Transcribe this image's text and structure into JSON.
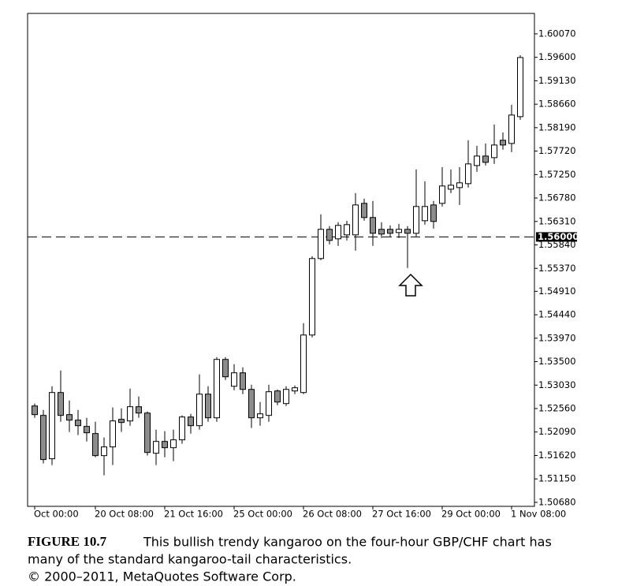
{
  "chart_data": {
    "type": "candlestick",
    "categories": [
      "Oct 00:00",
      null,
      null,
      null,
      null,
      null,
      null,
      "20 Oct 08:00",
      null,
      null,
      null,
      null,
      null,
      null,
      null,
      "21 Oct 16:00",
      null,
      null,
      null,
      null,
      null,
      null,
      null,
      "25 Oct 00:00",
      null,
      null,
      null,
      null,
      null,
      null,
      null,
      "26 Oct 08:00",
      null,
      null,
      null,
      null,
      null,
      null,
      null,
      "27 Oct 16:00",
      null,
      null,
      null,
      null,
      null,
      null,
      null,
      "29 Oct 00:00",
      null,
      null,
      null,
      null,
      null,
      null,
      null,
      "1 Nov 08:00",
      null
    ],
    "open": [
      1.52612,
      1.52423,
      1.51554,
      1.52881,
      1.52439,
      1.52328,
      1.52202,
      1.52059,
      1.51617,
      1.51791,
      1.52344,
      1.52312,
      1.52597,
      1.5247,
      1.51664,
      1.51901,
      1.51775,
      1.51933,
      1.52391,
      1.52217,
      1.52849,
      1.52375,
      1.53545,
      1.53007,
      1.53276,
      1.52944,
      1.52375,
      1.52423,
      1.52913,
      1.5266,
      1.52913,
      1.52881,
      1.54034,
      1.55567,
      1.56152,
      1.55962,
      1.56041,
      1.56041,
      1.56673,
      1.56389,
      1.56152,
      1.56152,
      1.56088,
      1.56152,
      1.56073,
      1.56325,
      1.56641,
      1.56673,
      1.56957,
      1.56989,
      1.57068,
      1.57431,
      1.57621,
      1.57589,
      1.57937,
      1.57874,
      1.58411
    ],
    "high": [
      1.5266,
      1.52533,
      1.53007,
      1.53323,
      1.52723,
      1.52533,
      1.52375,
      1.52296,
      1.5198,
      1.52581,
      1.52565,
      1.5296,
      1.52802,
      1.52502,
      1.52138,
      1.52107,
      1.52138,
      1.52423,
      1.52454,
      1.53244,
      1.53007,
      1.53592,
      1.53592,
      1.5345,
      1.53387,
      1.53039,
      1.52691,
      1.53039,
      1.52944,
      1.53007,
      1.53023,
      1.54271,
      1.55614,
      1.56452,
      1.56215,
      1.56294,
      1.56325,
      1.56878,
      1.56768,
      1.5672,
      1.56294,
      1.56231,
      1.56262,
      1.56215,
      1.57352,
      1.57115,
      1.5672,
      1.574,
      1.57352,
      1.574,
      1.57937,
      1.57826,
      1.57874,
      1.58253,
      1.58095,
      1.58648,
      1.59643
    ],
    "low": [
      1.52375,
      1.51459,
      1.51427,
      1.52296,
      1.52091,
      1.52028,
      1.51901,
      1.51585,
      1.51222,
      1.51427,
      1.52091,
      1.52217,
      1.52375,
      1.51617,
      1.51427,
      1.51585,
      1.51506,
      1.51854,
      1.52059,
      1.52138,
      1.52296,
      1.52296,
      1.53134,
      1.52928,
      1.52849,
      1.5217,
      1.52217,
      1.52296,
      1.52628,
      1.52612,
      1.52849,
      1.52849,
      1.53987,
      1.55535,
      1.55851,
      1.5582,
      1.5593,
      1.55725,
      1.56325,
      1.5582,
      1.55978,
      1.56009,
      1.55978,
      1.55377,
      1.56009,
      1.56246,
      1.56167,
      1.5661,
      1.56878,
      1.56641,
      1.56989,
      1.57305,
      1.57431,
      1.57463,
      1.57747,
      1.577,
      1.58348
    ],
    "close": [
      1.52439,
      1.51538,
      1.52881,
      1.52423,
      1.52328,
      1.52217,
      1.52075,
      1.51617,
      1.51791,
      1.52312,
      1.52281,
      1.52597,
      1.5247,
      1.5168,
      1.51901,
      1.51775,
      1.51933,
      1.52391,
      1.52217,
      1.52849,
      1.52375,
      1.53545,
      1.53197,
      1.53276,
      1.52944,
      1.52375,
      1.52454,
      1.52897,
      1.52691,
      1.52944,
      1.52976,
      1.54034,
      1.55567,
      1.56152,
      1.5593,
      1.56231,
      1.56246,
      1.56641,
      1.56389,
      1.56073,
      1.56057,
      1.56073,
      1.56152,
      1.56073,
      1.5661,
      1.5661,
      1.5631,
      1.57021,
      1.57036,
      1.57084,
      1.57463,
      1.57621,
      1.57495,
      1.57842,
      1.57842,
      1.58443,
      1.59596
    ],
    "up_color": "#ffffff",
    "down_color": "#8c8c8c",
    "ylim": [
      1.506,
      1.6048
    ],
    "yticks": [
      {
        "value": 1.5068,
        "label": "1.50680"
      },
      {
        "value": 1.5115,
        "label": "1.51150"
      },
      {
        "value": 1.5162,
        "label": "1.51620"
      },
      {
        "value": 1.5209,
        "label": "1.52090"
      },
      {
        "value": 1.5256,
        "label": "1.52560"
      },
      {
        "value": 1.5303,
        "label": "1.53030"
      },
      {
        "value": 1.535,
        "label": "1.53500"
      },
      {
        "value": 1.5397,
        "label": "1.53970"
      },
      {
        "value": 1.5444,
        "label": "1.54440"
      },
      {
        "value": 1.5491,
        "label": "1.54910"
      },
      {
        "value": 1.5537,
        "label": "1.55370"
      },
      {
        "value": 1.5584,
        "label": "1.55840"
      },
      {
        "value": 1.5631,
        "label": "1.56310"
      },
      {
        "value": 1.5678,
        "label": "1.56780"
      },
      {
        "value": 1.5725,
        "label": "1.57250"
      },
      {
        "value": 1.5772,
        "label": "1.57720"
      },
      {
        "value": 1.5819,
        "label": "1.58190"
      },
      {
        "value": 1.5866,
        "label": "1.58660"
      },
      {
        "value": 1.5913,
        "label": "1.59130"
      },
      {
        "value": 1.596,
        "label": "1.59600"
      },
      {
        "value": 1.6007,
        "label": "1.60070"
      }
    ],
    "hline": {
      "value": 1.56,
      "label": "1.56000"
    }
  },
  "caption": {
    "label": "FIGURE 10.7",
    "lines": [
      "This bullish trendy kangaroo on the four-hour GBP/CHF chart has",
      "many of the standard kangaroo-tail characteristics."
    ],
    "credit": "© 2000–2011, MetaQuotes Software Corp."
  }
}
